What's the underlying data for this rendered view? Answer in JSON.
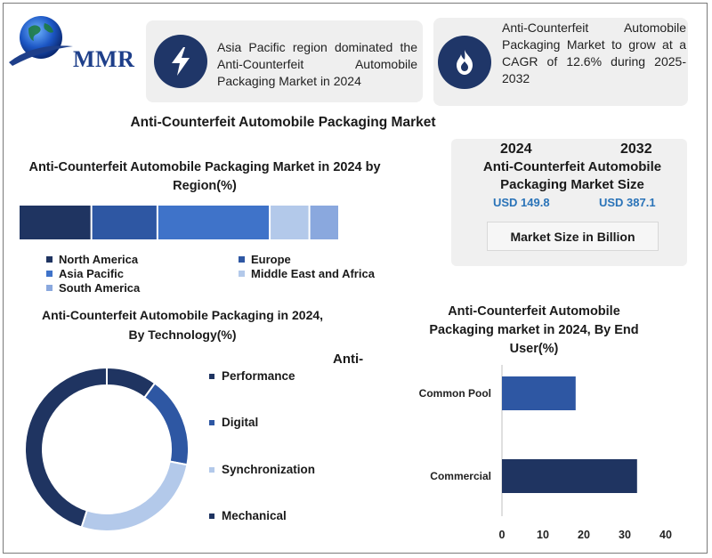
{
  "logo": {
    "text": "MMR"
  },
  "highlights": [
    {
      "icon": "lightning-icon",
      "text": "Asia Pacific region dominated the Anti-Counterfeit Automobile Packaging Market in 2024"
    },
    {
      "icon": "flame-icon",
      "text": "Anti-Counterfeit Automobile Packaging Market to grow at a CAGR of 12.6% during 2025-2032"
    }
  ],
  "main_title": "Anti-Counterfeit Automobile Packaging Market",
  "market_size": {
    "year_start": "2024",
    "year_end": "2032",
    "title": "Anti-Counterfeit Automobile Packaging Market Size",
    "value_start": "USD 149.8",
    "value_end": "USD 387.1",
    "unit": "Market Size in Billion"
  },
  "stray_label": "Anti-",
  "colors": {
    "navy": "#1f3461",
    "blue": "#2e57a3",
    "mid_blue": "#3f73c9",
    "light_blue": "#b3c9ea",
    "periwinkle": "#8aa8de",
    "card_bg": "#efefef",
    "value_blue": "#2a73b8"
  },
  "chart_data": [
    {
      "type": "bar",
      "orientation": "horizontal-stacked",
      "title": "Anti-Counterfeit Automobile Packaging Market in 2024 by Region(%)",
      "categories": [
        "North America",
        "Europe",
        "Asia Pacific",
        "Middle East and Africa",
        "South America"
      ],
      "values": [
        22,
        20,
        34,
        12,
        9
      ],
      "legend": [
        "North America",
        "Europe",
        "Asia Pacific",
        "Middle East and Africa",
        "South America"
      ]
    },
    {
      "type": "pie",
      "variant": "donut",
      "title": "Anti-Counterfeit Automobile Packaging in 2024, By Technology(%)",
      "categories": [
        "Performance",
        "Digital",
        "Synchronization",
        "Mechanical"
      ],
      "values": [
        10,
        18,
        27,
        45
      ],
      "legend": [
        "Performance",
        "Digital",
        "Synchronization",
        "Mechanical"
      ]
    },
    {
      "type": "bar",
      "orientation": "horizontal",
      "title": "Anti-Counterfeit Automobile Packaging market in 2024, By End User(%)",
      "categories": [
        "Common Pool",
        "Commercial"
      ],
      "values": [
        18,
        33
      ],
      "xlim": [
        0,
        40
      ],
      "xticks": [
        0,
        10,
        20,
        30,
        40
      ]
    }
  ]
}
